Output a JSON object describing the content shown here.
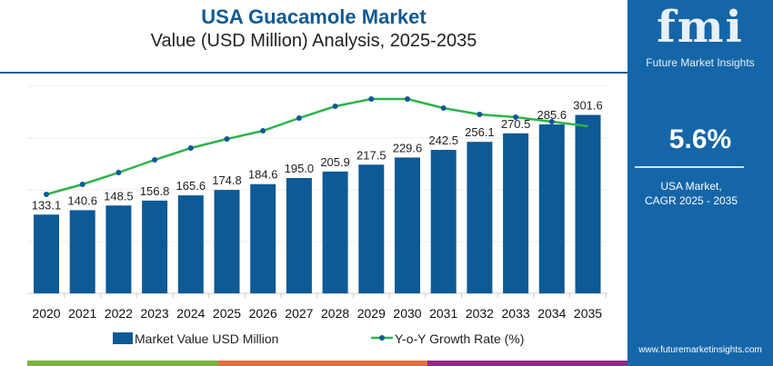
{
  "header": {
    "title": "USA Guacamole Market",
    "subtitle": "Value (USD Million) Analysis, 2025-2035"
  },
  "side_panel": {
    "logo": "fmi",
    "logo_text": "Future Market Insights",
    "cagr_value": "5.6%",
    "cagr_label_1": "USA Market,",
    "cagr_label_2": "CAGR 2025 - 2035",
    "url": "www.futuremarketinsights.com"
  },
  "colors": {
    "bar": "#0d5a96",
    "line": "#2db34a",
    "marker": "#0d5a96",
    "panel": "#1566a8"
  },
  "chart_data": {
    "type": "bar",
    "categories": [
      "2020",
      "2021",
      "2022",
      "2023",
      "2024",
      "2025",
      "2026",
      "2027",
      "2028",
      "2029",
      "2030",
      "2031",
      "2032",
      "2033",
      "2034",
      "2035"
    ],
    "ylim": [
      0,
      350
    ],
    "grid": true,
    "legend_position": "bottom",
    "series": [
      {
        "name": "Market Value USD Million",
        "type": "bar",
        "values": [
          133.1,
          140.6,
          148.5,
          156.8,
          165.6,
          174.8,
          184.6,
          195.0,
          205.9,
          217.5,
          229.6,
          242.5,
          256.1,
          270.5,
          285.6,
          301.6
        ],
        "labels": [
          "133.1",
          "140.6",
          "148.5",
          "156.8",
          "165.6",
          "174.8",
          "184.6",
          "195.0",
          "205.9",
          "217.5",
          "229.6",
          "242.5",
          "256.1",
          "270.5",
          "285.6",
          "301.6"
        ]
      },
      {
        "name": "Y-o-Y Growth Rate (%)",
        "type": "line",
        "ylim": [
          0,
          11.4
        ],
        "values": [
          5.45,
          6.0,
          6.65,
          7.35,
          8.0,
          8.5,
          8.95,
          9.65,
          10.3,
          10.7,
          10.7,
          10.2,
          9.85,
          9.7,
          9.45,
          9.2
        ]
      }
    ]
  }
}
